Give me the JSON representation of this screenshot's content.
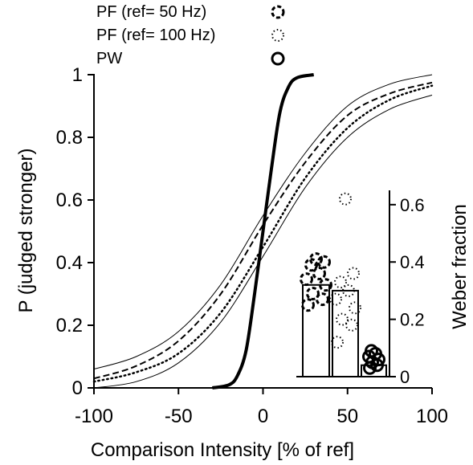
{
  "chart_data": [
    {
      "type": "line",
      "xlabel": "Comparison  Intensity  [% of ref]",
      "ylabel": "P (judged stronger)",
      "xlim": [
        -100,
        100
      ],
      "ylim": [
        0,
        1
      ],
      "xticks": [
        -100,
        -50,
        0,
        50,
        100
      ],
      "xtick_labels": [
        "-100",
        "-50",
        "0",
        "50",
        "100"
      ],
      "yticks": [
        0,
        0.2,
        0.4,
        0.6,
        0.8,
        1
      ],
      "ytick_labels": [
        "0",
        "0.2",
        "0.4",
        "0.6",
        "0.8",
        "1"
      ],
      "grid": false,
      "legend_position": "top-left",
      "legend": [
        {
          "name": "PF (ref= 50 Hz)",
          "marker": "dashed-circle"
        },
        {
          "name": "PF (ref= 100 Hz)",
          "marker": "dotted-circle"
        },
        {
          "name": "PW",
          "marker": "solid-circle"
        }
      ],
      "series": [
        {
          "legend_name": "PF (ref= 50 Hz)",
          "style": "dashed",
          "x": [
            -100,
            -75,
            -50,
            -25,
            0,
            25,
            50,
            75,
            100
          ],
          "y": [
            0.03,
            0.07,
            0.15,
            0.3,
            0.52,
            0.72,
            0.87,
            0.94,
            0.975
          ]
        },
        {
          "legend_name": "PF (ref= 100 Hz)",
          "style": "dotted",
          "x": [
            -100,
            -75,
            -50,
            -25,
            0,
            25,
            50,
            75,
            100
          ],
          "y": [
            0.02,
            0.05,
            0.11,
            0.24,
            0.45,
            0.67,
            0.83,
            0.92,
            0.965
          ]
        },
        {
          "legend_name": "PW",
          "style": "solid-thick",
          "x": [
            -30,
            -20,
            -15,
            -10,
            -5,
            0,
            5,
            10,
            15,
            20,
            30
          ],
          "y": [
            0.0,
            0.01,
            0.04,
            0.12,
            0.3,
            0.5,
            0.7,
            0.88,
            0.96,
            0.99,
            1.0
          ]
        }
      ]
    },
    {
      "type": "bar",
      "ylabel": "Weber fraction",
      "ylim": [
        0,
        0.65
      ],
      "yticks": [
        0,
        0.2,
        0.4,
        0.6
      ],
      "ytick_labels": [
        "0",
        "0.2",
        "0.4",
        "0.6"
      ],
      "ytick_position": "right",
      "categories": [
        "PF (ref= 50 Hz)",
        "PF (ref= 100 Hz)",
        "PW"
      ],
      "values": [
        0.32,
        0.3,
        0.04
      ],
      "points": [
        [
          0.25,
          0.27,
          0.29,
          0.32,
          0.34,
          0.36,
          0.39,
          0.4,
          0.41
        ],
        [
          0.12,
          0.18,
          0.2,
          0.24,
          0.27,
          0.3,
          0.33,
          0.36,
          0.62
        ],
        [
          0.03,
          0.04,
          0.05,
          0.06,
          0.07,
          0.08,
          0.09
        ]
      ]
    }
  ]
}
